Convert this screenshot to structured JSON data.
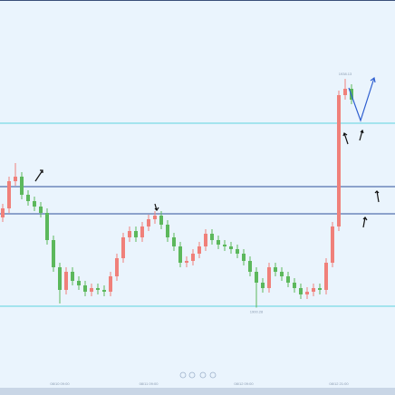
{
  "chart_data": {
    "type": "candlestick",
    "up_color": "#f0807a",
    "down_color": "#5cb85c",
    "ylim": [
      1887.0,
      1951.2
    ],
    "categories": [
      null,
      null,
      null,
      null,
      null,
      null,
      null,
      null,
      null,
      "08/10 09:00",
      null,
      null,
      null,
      null,
      null,
      null,
      null,
      null,
      null,
      null,
      null,
      null,
      null,
      "08/11 09:00",
      null,
      null,
      null,
      null,
      null,
      null,
      null,
      null,
      null,
      null,
      null,
      null,
      null,
      null,
      "08/12 09:00",
      null,
      null,
      null,
      null,
      null,
      null,
      null,
      null,
      null,
      null,
      null,
      null,
      null,
      null,
      "08/12 21:00",
      null,
      null
    ],
    "open": [
      1915.2,
      1916.7,
      1921.2,
      1921.95,
      1918.95,
      1917.9,
      1917.0,
      1915.95,
      1911.45,
      1906.95,
      1903.2,
      1906.2,
      1904.7,
      1903.95,
      1902.9,
      1903.5,
      1903.2,
      1902.9,
      1905.45,
      1908.45,
      1911.9,
      1912.95,
      1911.9,
      1913.7,
      1914.9,
      1915.5,
      1914.0,
      1911.9,
      1910.4,
      1907.7,
      1908.0,
      1909.2,
      1910.4,
      1912.5,
      1911.45,
      1910.7,
      1910.4,
      1909.95,
      1909.2,
      1908.0,
      1906.2,
      1904.4,
      1903.5,
      1906.95,
      1906.2,
      1905.45,
      1904.4,
      1903.5,
      1902.45,
      1902.9,
      1903.5,
      1903.2,
      1907.7,
      1913.7,
      1935.45,
      1936.5
    ],
    "high": [
      1917.45,
      1921.95,
      1924.2,
      1922.7,
      1919.7,
      1918.65,
      1917.75,
      1916.7,
      1912.2,
      1907.7,
      1906.95,
      1906.95,
      1905.45,
      1904.7,
      1904.25,
      1904.25,
      1903.95,
      1906.2,
      1909.2,
      1912.65,
      1913.7,
      1913.7,
      1914.45,
      1915.65,
      1916.25,
      1916.25,
      1914.75,
      1912.65,
      1911.15,
      1908.75,
      1909.95,
      1911.15,
      1913.25,
      1913.25,
      1912.2,
      1911.45,
      1911.15,
      1910.7,
      1909.95,
      1908.75,
      1906.95,
      1905.15,
      1907.7,
      1907.7,
      1906.95,
      1906.2,
      1905.15,
      1904.25,
      1903.65,
      1904.25,
      1904.25,
      1908.45,
      1914.45,
      1936.2,
      1938.13,
      1937.25
    ],
    "low": [
      1914.45,
      1915.95,
      1920.45,
      1918.2,
      1917.15,
      1916.25,
      1915.2,
      1910.7,
      1906.2,
      1900.95,
      1902.45,
      1903.95,
      1903.2,
      1902.15,
      1902.15,
      1902.45,
      1902.15,
      1902.15,
      1904.7,
      1907.7,
      1911.15,
      1911.15,
      1911.15,
      1912.95,
      1914.15,
      1913.25,
      1911.15,
      1909.65,
      1906.95,
      1906.95,
      1907.25,
      1908.45,
      1909.65,
      1910.7,
      1909.95,
      1909.65,
      1909.2,
      1908.45,
      1907.25,
      1905.45,
      1900.28,
      1902.75,
      1902.75,
      1905.45,
      1904.7,
      1903.65,
      1902.75,
      1901.7,
      1901.7,
      1902.15,
      1902.45,
      1902.45,
      1906.95,
      1912.95,
      1934.7,
      1933.95
    ],
    "close": [
      1916.7,
      1921.2,
      1921.95,
      1918.95,
      1917.9,
      1917.0,
      1915.95,
      1911.45,
      1906.95,
      1903.2,
      1906.2,
      1904.7,
      1903.95,
      1902.9,
      1903.5,
      1903.2,
      1902.9,
      1905.45,
      1908.45,
      1911.9,
      1912.95,
      1911.9,
      1913.7,
      1914.9,
      1915.5,
      1914.0,
      1911.9,
      1910.4,
      1907.7,
      1908.0,
      1909.2,
      1910.4,
      1912.5,
      1911.45,
      1910.7,
      1910.4,
      1909.95,
      1909.2,
      1908.0,
      1906.2,
      1904.4,
      1903.5,
      1906.95,
      1906.2,
      1905.45,
      1904.4,
      1903.5,
      1902.45,
      1902.9,
      1903.5,
      1903.2,
      1907.7,
      1913.7,
      1935.45,
      1936.5,
      1934.7
    ],
    "max_label": "1938.13",
    "min_label": "1900.28",
    "levels": [
      {
        "value": 1930.8,
        "color": "#5fd3e0"
      },
      {
        "value": 1920.3,
        "color": "#2f4f9a"
      },
      {
        "value": 1915.8,
        "color": "#2f4f9a"
      },
      {
        "value": 1900.5,
        "color": "#5fd3e0"
      }
    ]
  }
}
